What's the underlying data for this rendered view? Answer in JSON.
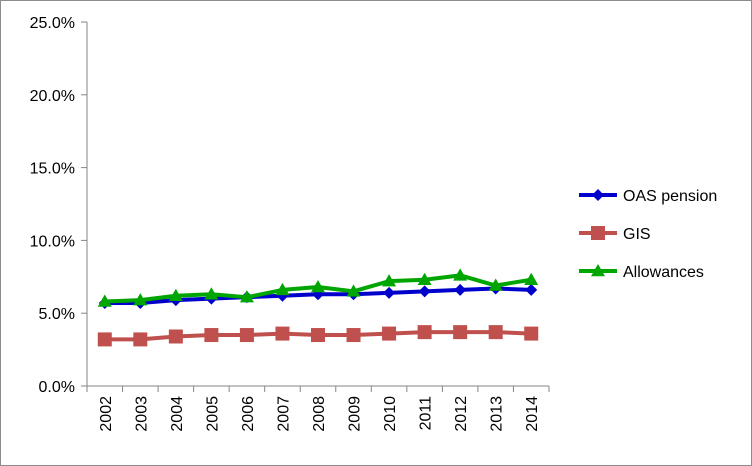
{
  "chart_data": {
    "type": "line",
    "title": "",
    "xlabel": "",
    "ylabel": "",
    "categories": [
      "2002",
      "2003",
      "2004",
      "2005",
      "2006",
      "2007",
      "2008",
      "2009",
      "2010",
      "2011",
      "2012",
      "2013",
      "2014"
    ],
    "ylim": [
      0,
      25
    ],
    "y_ticks": [
      "0.0%",
      "5.0%",
      "10.0%",
      "15.0%",
      "20.0%",
      "25.0%"
    ],
    "grid": false,
    "legend_position": "right",
    "series": [
      {
        "name": "OAS pension",
        "color": "#0000CC",
        "marker": "diamond",
        "values": [
          5.7,
          5.7,
          5.9,
          6.0,
          6.1,
          6.2,
          6.3,
          6.3,
          6.4,
          6.5,
          6.6,
          6.7,
          6.6
        ]
      },
      {
        "name": "GIS",
        "color": "#C0504D",
        "marker": "square",
        "values": [
          3.2,
          3.2,
          3.4,
          3.5,
          3.5,
          3.6,
          3.5,
          3.5,
          3.6,
          3.7,
          3.7,
          3.7,
          3.6
        ]
      },
      {
        "name": "Allowances",
        "color": "#00A600",
        "marker": "triangle",
        "values": [
          5.8,
          5.9,
          6.2,
          6.3,
          6.1,
          6.6,
          6.8,
          6.5,
          7.2,
          7.3,
          7.6,
          6.9,
          7.3
        ]
      }
    ]
  }
}
